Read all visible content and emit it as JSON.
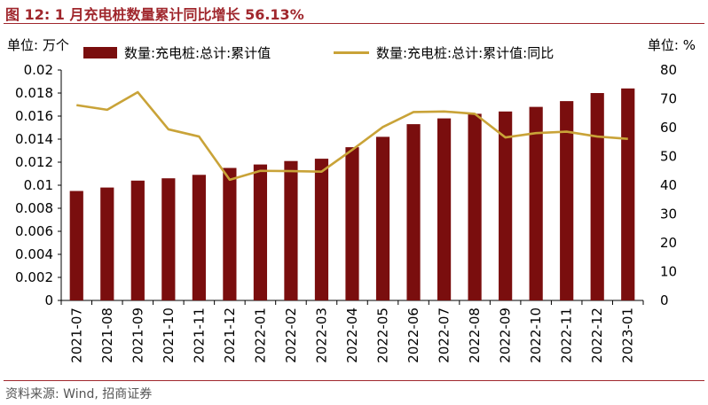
{
  "title": "图 12:  1 月充电桩数量累计同比增长 56.13%",
  "unit_left": "单位:  万个",
  "unit_right": "单位:  %",
  "source": "资料来源:  Wind,  招商证券",
  "colors": {
    "bar": "#7a0e0e",
    "line": "#c9a338",
    "accent": "#a0272d"
  },
  "chart_data": {
    "type": "bar+line",
    "categories": [
      "2021-07",
      "2021-08",
      "2021-09",
      "2021-10",
      "2021-11",
      "2021-12",
      "2022-01",
      "2022-02",
      "2022-03",
      "2022-04",
      "2022-05",
      "2022-06",
      "2022-07",
      "2022-08",
      "2022-09",
      "2022-10",
      "2022-11",
      "2022-12",
      "2023-01"
    ],
    "series": [
      {
        "name": "数量:充电桩:总计:累计值",
        "type": "bar",
        "axis": "left",
        "values": [
          0.0095,
          0.0098,
          0.0104,
          0.0106,
          0.0109,
          0.0115,
          0.0118,
          0.0121,
          0.0123,
          0.0133,
          0.0142,
          0.0153,
          0.0158,
          0.0162,
          0.0164,
          0.0168,
          0.0173,
          0.018,
          0.0184
        ]
      },
      {
        "name": "数量:充电桩:总计:累计值:同比",
        "type": "line",
        "axis": "right",
        "values": [
          67.8,
          66.2,
          72.3,
          59.4,
          56.9,
          41.9,
          45.0,
          44.9,
          44.7,
          52.3,
          60.2,
          65.4,
          65.6,
          64.8,
          56.6,
          58.1,
          58.6,
          56.9,
          56.1
        ]
      }
    ],
    "y_left": {
      "min": 0,
      "max": 0.02,
      "ticks": [
        "0",
        "0.002",
        "0.004",
        "0.006",
        "0.008",
        "0.01",
        "0.012",
        "0.014",
        "0.016",
        "0.018",
        "0.02"
      ]
    },
    "y_right": {
      "min": 0,
      "max": 80,
      "ticks": [
        "0",
        "10",
        "20",
        "30",
        "40",
        "50",
        "60",
        "70",
        "80"
      ]
    },
    "legend_position": "top"
  }
}
